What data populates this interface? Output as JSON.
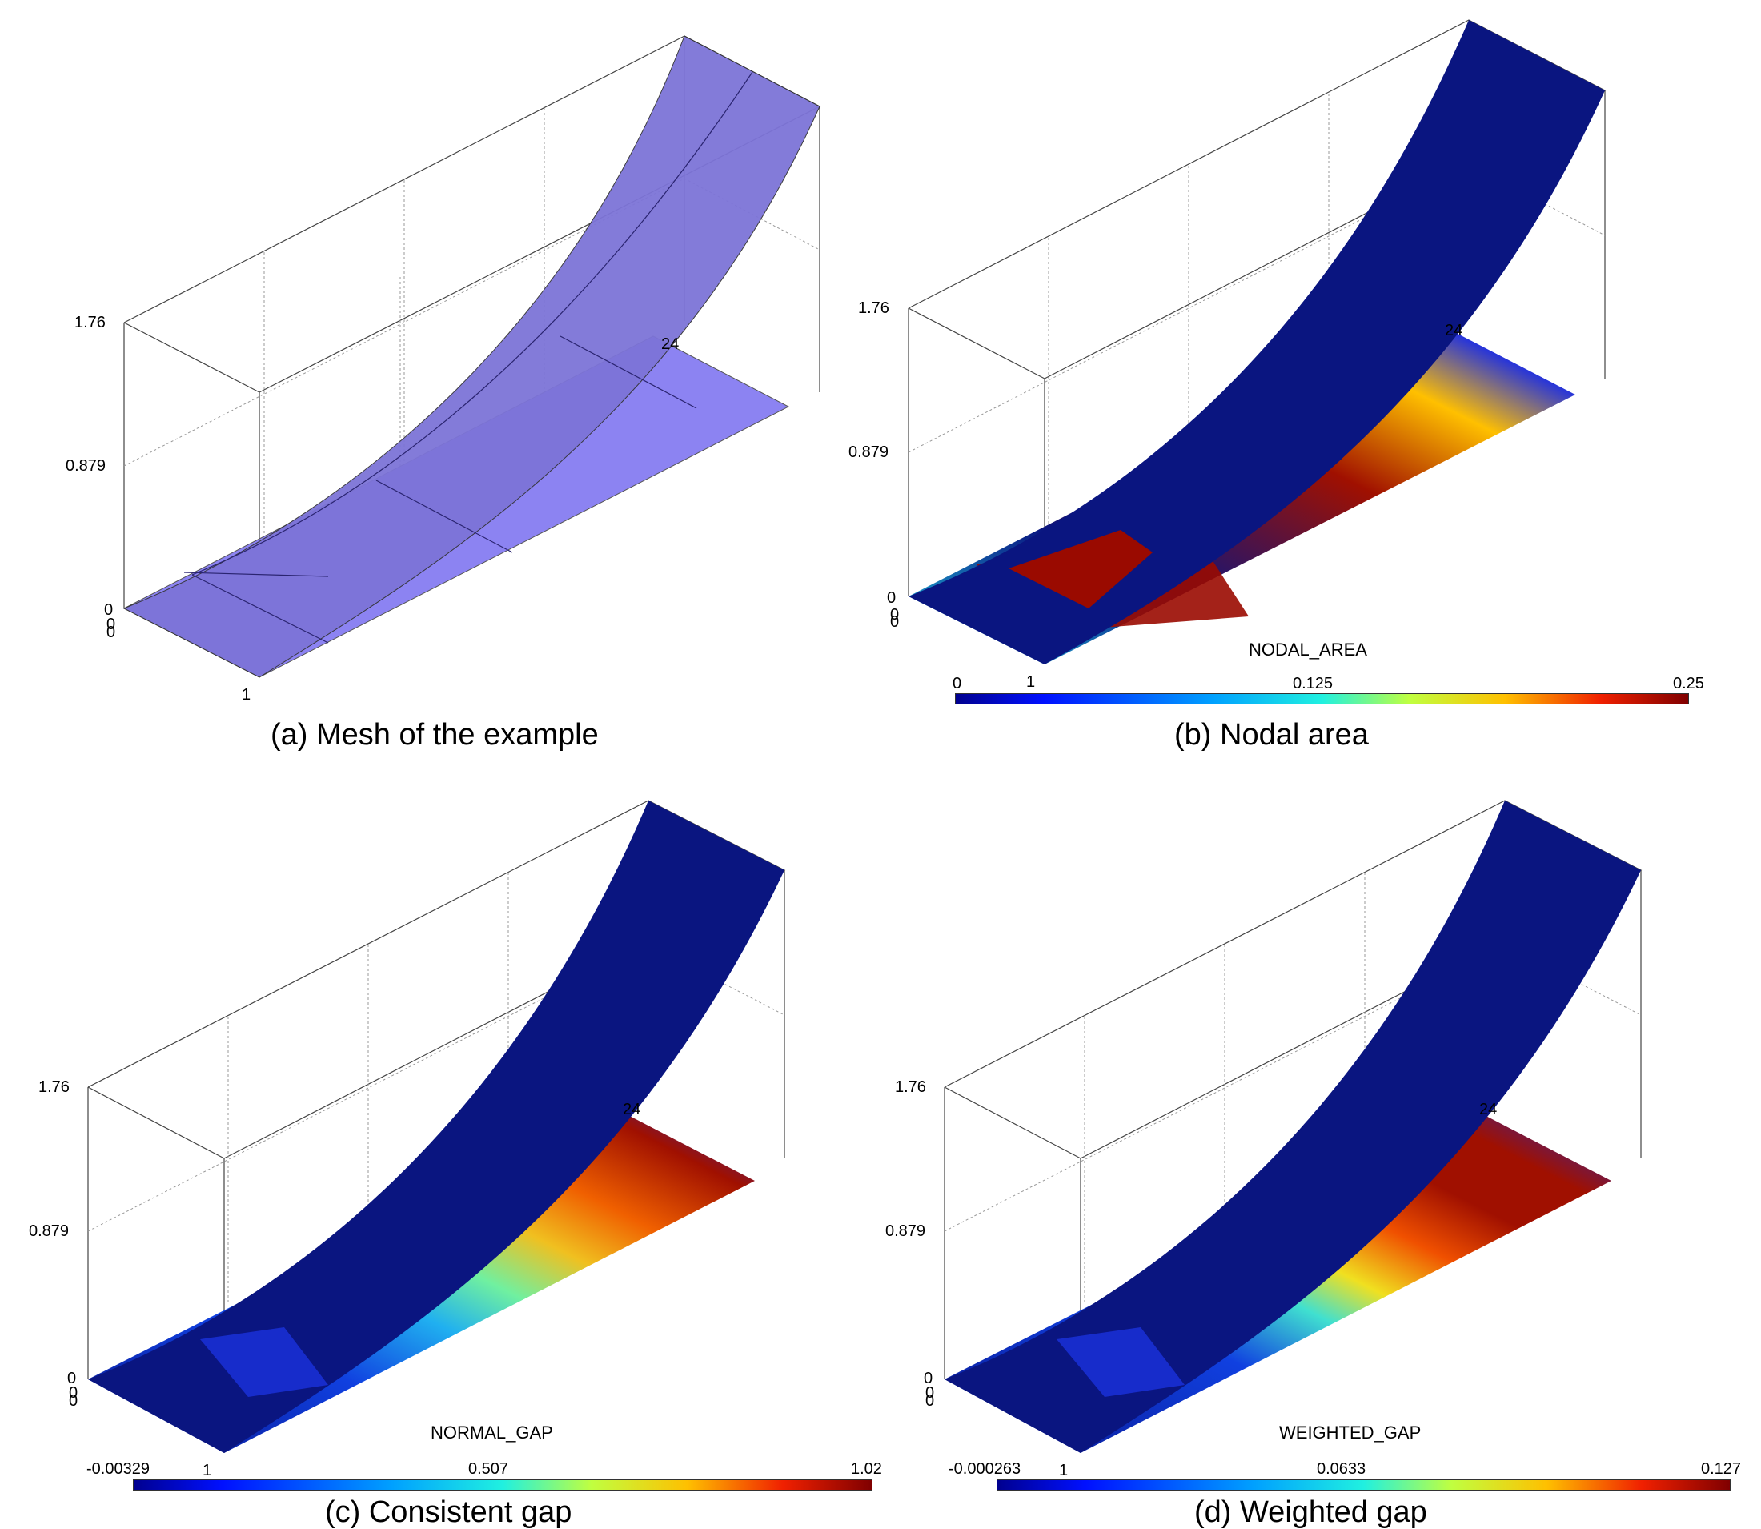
{
  "panels": [
    {
      "id": "a",
      "caption": "(a) Mesh of the example",
      "z_ticks": [
        "1.76",
        "0.879",
        "0"
      ],
      "x_tick_far": "24",
      "x_tick_near": "1",
      "origin_ticks": [
        "0",
        "0",
        "0"
      ],
      "field": "",
      "colorbar": null
    },
    {
      "id": "b",
      "caption": "(b) Nodal area",
      "z_ticks": [
        "1.76",
        "0.879",
        "0"
      ],
      "x_tick_far": "24",
      "x_tick_near": "1",
      "origin_ticks": [
        "0",
        "0",
        "0"
      ],
      "field": "NODAL_AREA",
      "colorbar": {
        "min": "0",
        "mid": "0.125",
        "max": "0.25"
      }
    },
    {
      "id": "c",
      "caption": "(c) Consistent gap",
      "z_ticks": [
        "1.76",
        "0.879",
        "0"
      ],
      "x_tick_far": "24",
      "x_tick_near": "1",
      "origin_ticks": [
        "0",
        "0",
        "0"
      ],
      "field": "NORMAL_GAP",
      "colorbar": {
        "min": "-0.00329",
        "mid": "0.507",
        "max": "1.02"
      }
    },
    {
      "id": "d",
      "caption": "(d) Weighted gap",
      "z_ticks": [
        "1.76",
        "0.879",
        "0"
      ],
      "x_tick_far": "24",
      "x_tick_near": "1",
      "origin_ticks": [
        "0",
        "0",
        "0"
      ],
      "field": "WEIGHTED_GAP",
      "colorbar": {
        "min": "-0.000263",
        "mid": "0.0633",
        "max": "0.127"
      }
    }
  ],
  "colors": {
    "mesh_fill": "#8c83f2",
    "mesh_upper": "#6f66c4",
    "surface_dark": "#0a1580",
    "jet": [
      "#00008f",
      "#0010ff",
      "#00a0ff",
      "#20f0e0",
      "#a0ff60",
      "#ffe000",
      "#ff8000",
      "#e81000",
      "#800000"
    ]
  }
}
